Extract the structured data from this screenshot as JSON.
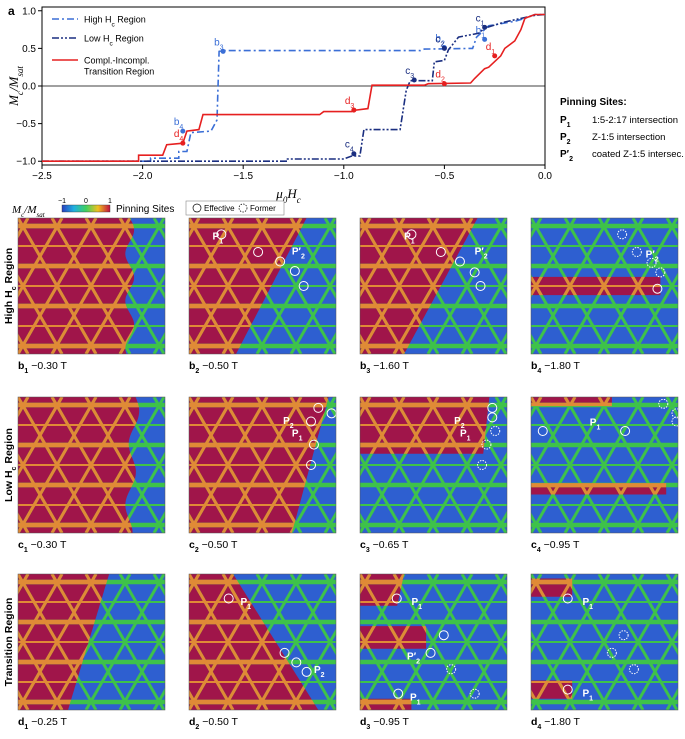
{
  "panel_label": "a",
  "chart_data": {
    "type": "line",
    "xlabel": "μ0Hc",
    "ylabel": "Mc/Msat",
    "xlim": [
      -2.5,
      0.0
    ],
    "ylim": [
      -1.05,
      1.05
    ],
    "x_ticks": [
      "-2.5",
      "-2.0",
      "-1.5",
      "-1.0",
      "-0.5",
      "0.0"
    ],
    "y_ticks": [
      "-1.0",
      "-0.5",
      "0.0",
      "0.5",
      "1.0"
    ],
    "grid": false,
    "legend_position": "top-left",
    "series": [
      {
        "name": "High Hc Region",
        "color": "#3b6fd6",
        "dash": "dash-dot",
        "points": [
          [
            -2.5,
            -1.0
          ],
          [
            -1.96,
            -1.0
          ],
          [
            -1.96,
            -0.96
          ],
          [
            -1.82,
            -0.96
          ],
          [
            -1.82,
            -0.87
          ],
          [
            -1.78,
            -0.87
          ],
          [
            -1.76,
            -0.62
          ],
          [
            -1.66,
            -0.6
          ],
          [
            -1.63,
            -0.45
          ],
          [
            -1.62,
            0.46
          ],
          [
            -1.6,
            0.47
          ],
          [
            -0.62,
            0.47
          ],
          [
            -0.6,
            0.49
          ],
          [
            -0.36,
            0.5
          ],
          [
            -0.34,
            0.65
          ],
          [
            -0.28,
            0.8
          ],
          [
            -0.15,
            0.86
          ],
          [
            -0.1,
            0.9
          ],
          [
            -0.05,
            0.95
          ],
          [
            0.0,
            0.95
          ]
        ],
        "markers": [
          {
            "label": "b1",
            "x": -0.3,
            "y": 0.62
          },
          {
            "label": "b2",
            "x": -0.5,
            "y": 0.51
          },
          {
            "label": "b3",
            "x": -1.6,
            "y": 0.46
          },
          {
            "label": "b4",
            "x": -1.8,
            "y": -0.6
          }
        ]
      },
      {
        "name": "Low Hc Region",
        "color": "#1a2e80",
        "dash": "dash-dot-dot",
        "points": [
          [
            -2.5,
            -1.0
          ],
          [
            -1.28,
            -1.0
          ],
          [
            -1.28,
            -0.97
          ],
          [
            -1.0,
            -0.97
          ],
          [
            -0.96,
            -0.93
          ],
          [
            -0.92,
            -0.93
          ],
          [
            -0.9,
            -0.58
          ],
          [
            -0.72,
            -0.58
          ],
          [
            -0.69,
            -0.06
          ],
          [
            -0.67,
            0.07
          ],
          [
            -0.56,
            0.07
          ],
          [
            -0.55,
            0.32
          ],
          [
            -0.5,
            0.34
          ],
          [
            -0.48,
            0.48
          ],
          [
            -0.43,
            0.65
          ],
          [
            -0.33,
            0.7
          ],
          [
            -0.3,
            0.77
          ],
          [
            -0.2,
            0.85
          ],
          [
            -0.05,
            0.94
          ],
          [
            0.0,
            0.95
          ]
        ],
        "markers": [
          {
            "label": "c1",
            "x": -0.3,
            "y": 0.78
          },
          {
            "label": "c2",
            "x": -0.5,
            "y": 0.5
          },
          {
            "label": "c3",
            "x": -0.65,
            "y": 0.08
          },
          {
            "label": "c4",
            "x": -0.95,
            "y": -0.9
          }
        ]
      },
      {
        "name": "Compl.-Incompl. Transition Region",
        "color": "#e62020",
        "dash": "solid",
        "points": [
          [
            -2.5,
            -1.0
          ],
          [
            -2.02,
            -1.0
          ],
          [
            -2.02,
            -0.92
          ],
          [
            -1.9,
            -0.92
          ],
          [
            -1.88,
            -0.78
          ],
          [
            -1.8,
            -0.76
          ],
          [
            -1.78,
            -0.6
          ],
          [
            -1.72,
            -0.58
          ],
          [
            -1.7,
            -0.38
          ],
          [
            -1.12,
            -0.38
          ],
          [
            -1.1,
            -0.34
          ],
          [
            -0.96,
            -0.34
          ],
          [
            -0.94,
            -0.32
          ],
          [
            -0.88,
            -0.3
          ],
          [
            -0.86,
            0.01
          ],
          [
            -0.6,
            0.01
          ],
          [
            -0.58,
            0.03
          ],
          [
            -0.37,
            0.04
          ],
          [
            -0.35,
            0.1
          ],
          [
            -0.3,
            0.23
          ],
          [
            -0.28,
            0.25
          ],
          [
            -0.22,
            0.4
          ],
          [
            -0.2,
            0.5
          ],
          [
            -0.15,
            0.6
          ],
          [
            -0.12,
            0.75
          ],
          [
            -0.1,
            0.9
          ],
          [
            -0.05,
            0.95
          ],
          [
            0.0,
            0.95
          ]
        ],
        "markers": [
          {
            "label": "d1",
            "x": -0.25,
            "y": 0.4
          },
          {
            "label": "d2",
            "x": -0.5,
            "y": 0.03
          },
          {
            "label": "d3",
            "x": -0.95,
            "y": -0.32
          },
          {
            "label": "d4",
            "x": -1.8,
            "y": -0.76
          }
        ]
      }
    ]
  },
  "pinning_sites": {
    "title": "Pinning Sites:",
    "items": [
      {
        "symbol": "P1",
        "desc": "1:5-2:17 intersection"
      },
      {
        "symbol": "P2",
        "desc": "Z-1:5 intersection"
      },
      {
        "symbol": "P′2",
        "desc": "coated Z-1:5 intersec."
      }
    ]
  },
  "colorbar": {
    "label": "Mc/Msat",
    "ticks": [
      "−1",
      "0",
      "1"
    ]
  },
  "grid_header": {
    "pinning_label": "Pinning Sites",
    "effective": "Effective",
    "former": "Former"
  },
  "rows": [
    {
      "label": "High Hc Region",
      "panels": [
        {
          "id": "b1",
          "field": "−0.30 T"
        },
        {
          "id": "b2",
          "field": "−0.50 T"
        },
        {
          "id": "b3",
          "field": "−1.60 T"
        },
        {
          "id": "b4",
          "field": "−1.80 T"
        }
      ]
    },
    {
      "label": "Low Hc Region",
      "panels": [
        {
          "id": "c1",
          "field": "−0.30 T"
        },
        {
          "id": "c2",
          "field": "−0.50 T"
        },
        {
          "id": "c3",
          "field": "−0.65 T"
        },
        {
          "id": "c4",
          "field": "−0.95 T"
        }
      ]
    },
    {
      "label": "Transition Region",
      "panels": [
        {
          "id": "d1",
          "field": "−0.25 T"
        },
        {
          "id": "d2",
          "field": "−0.50 T"
        },
        {
          "id": "d3",
          "field": "−0.95 T"
        },
        {
          "id": "d4",
          "field": "−1.80 T"
        }
      ]
    }
  ],
  "colors": {
    "red": "#a0154a",
    "blue": "#2e5fd0",
    "orange": "#e08a36",
    "green": "#3ec24a"
  }
}
